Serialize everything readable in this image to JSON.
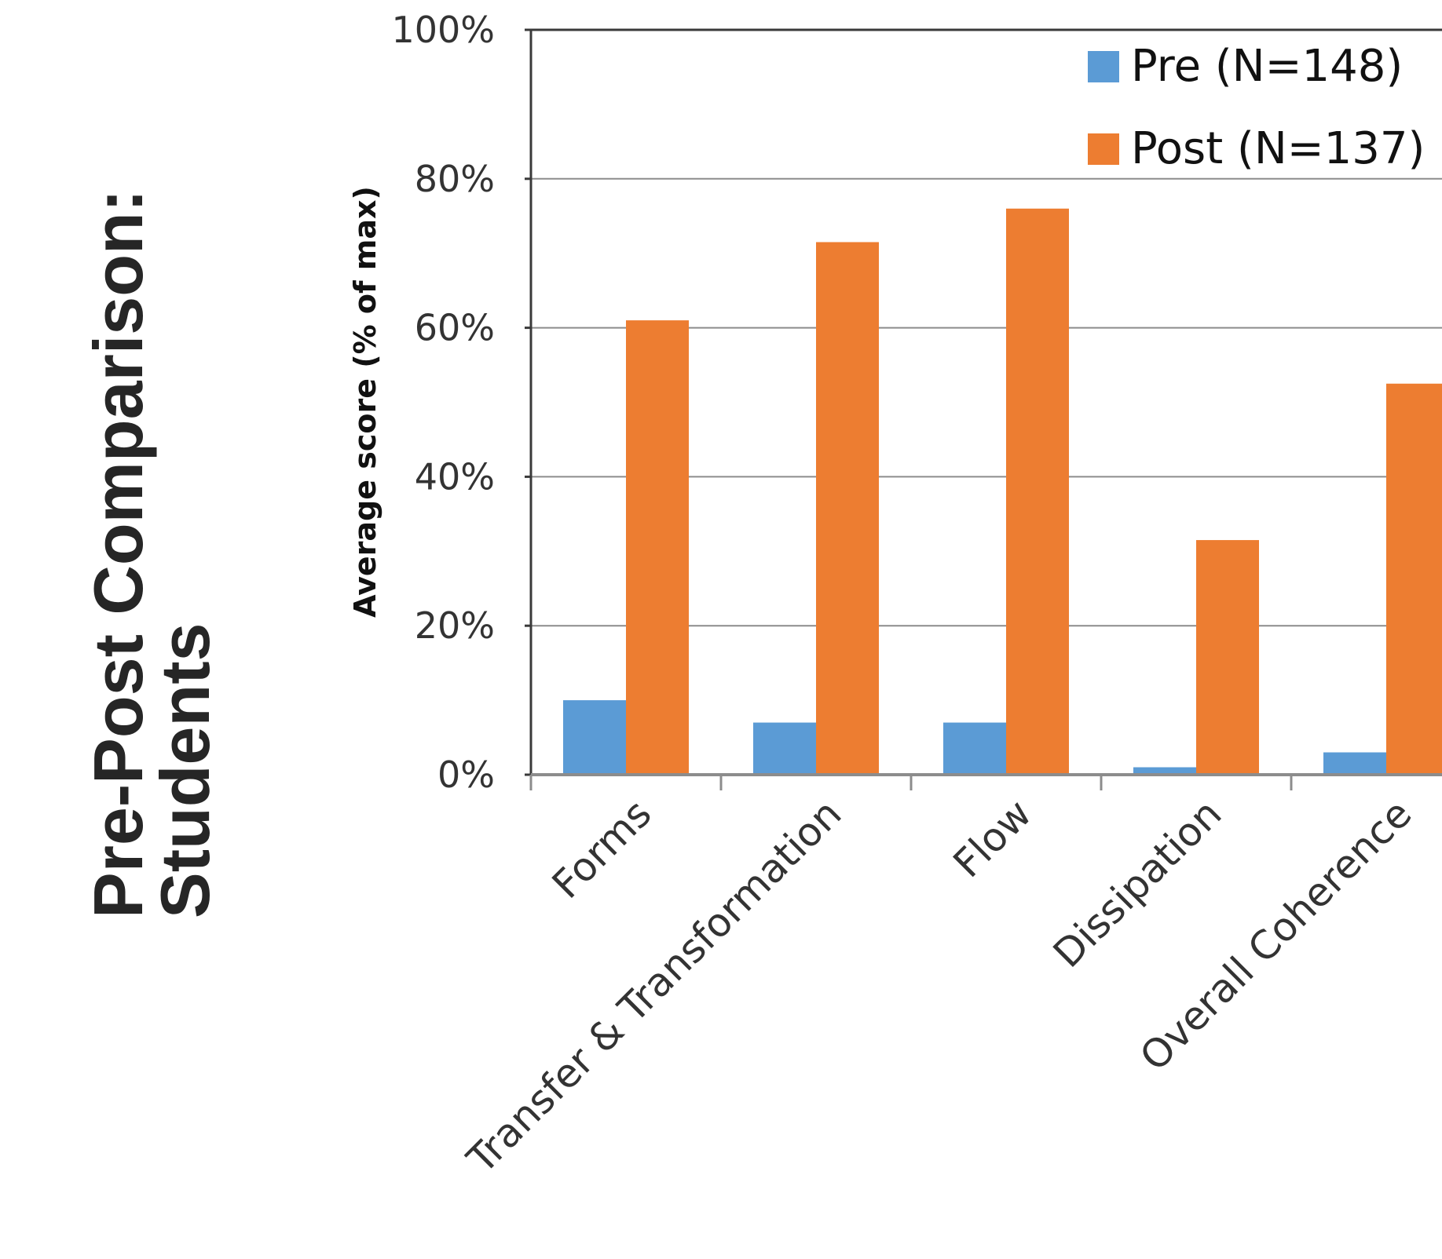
{
  "heading": {
    "line1": "Pre-Post Comparison:",
    "line2": "Students"
  },
  "chart_data": {
    "type": "bar",
    "ylabel": "Average score  (% of max)",
    "xlabel": "",
    "ylim": [
      0,
      100
    ],
    "yticks": [
      0,
      20,
      40,
      60,
      80,
      100
    ],
    "ytick_labels": [
      "0%",
      "20%",
      "40%",
      "60%",
      "80%",
      "100%"
    ],
    "categories": [
      "Forms",
      "Transfer & Transformation",
      "Flow",
      "Dissipation",
      "Overall Coherence"
    ],
    "series": [
      {
        "name": "Pre (N=148)",
        "color": "#5b9bd5",
        "values": [
          10,
          7,
          7,
          1,
          3
        ]
      },
      {
        "name": "Post (N=137)",
        "color": "#ed7d31",
        "values": [
          61,
          71.5,
          76,
          31.5,
          52.5
        ]
      }
    ],
    "grid": true,
    "legend_position": "top-right"
  }
}
